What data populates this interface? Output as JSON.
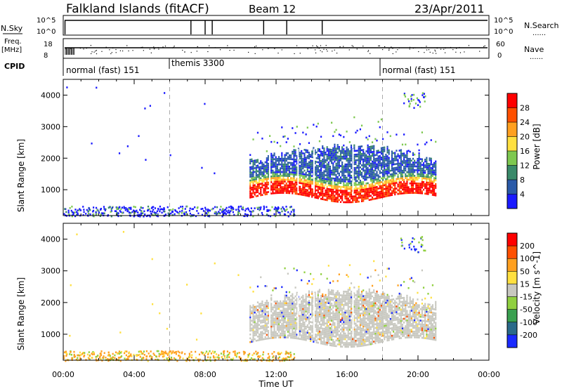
{
  "header": {
    "station": "Falkland Islands (fitACF)",
    "beam": "Beam 12",
    "date": "23/Apr/2011"
  },
  "strips": {
    "nsky_label": "N.Sky",
    "nsearch_label": "N.Search",
    "freq_label_1": "Freq.",
    "freq_label_2": "[MHz]",
    "nave_label": "Nave",
    "cpid_label": "CPID",
    "nsky_ticks": [
      "10^5",
      "10^0"
    ],
    "nsearch_ticks": [
      "10^5",
      "10^0"
    ],
    "freq_ticks": [
      "18",
      "8"
    ],
    "nave_ticks": [
      "60",
      "0"
    ],
    "dotted_legend": "......",
    "cpid_segments": [
      {
        "label": "normal (fast) 151",
        "start": 0.0,
        "end": 6.0
      },
      {
        "label": "themis 3300",
        "start": 6.0,
        "end": 18.0
      },
      {
        "label": "normal (fast) 151",
        "start": 18.0,
        "end": 24.0
      }
    ],
    "scan_breaks_hours": [
      7.2,
      8.0,
      8.4,
      11.3,
      12.6,
      14.6
    ]
  },
  "axes": {
    "ylabel": "Slant Range [km]",
    "xlabel": "Time UT",
    "yticks": [
      "1000",
      "2000",
      "3000",
      "4000"
    ],
    "xticks": [
      "00:00",
      "04:00",
      "08:00",
      "12:00",
      "16:00",
      "20:00",
      "00:00"
    ]
  },
  "chart_data": [
    {
      "type": "heatmap",
      "panel": "power",
      "xlabel": "Time UT",
      "ylabel": "Slant Range [km]",
      "xlim_hours": [
        0,
        24
      ],
      "ylim_km": [
        180,
        4500
      ],
      "colorbar_label": "Power [dB]",
      "colorbar_ticks": [
        "28",
        "24",
        "20",
        "16",
        "12",
        "8",
        "4"
      ],
      "colorbar_colors": [
        "#1a1aff",
        "#2a5aa8",
        "#3a8a6a",
        "#7ec850",
        "#ffe040",
        "#ffa020",
        "#ff5000",
        "#ff0000"
      ],
      "dashed_lines_hours": [
        6,
        18
      ],
      "echo_region": {
        "start_hour": 10.5,
        "end_hour": 21.0,
        "core_km": [
          900,
          1400
        ],
        "peak_db": 30
      }
    },
    {
      "type": "heatmap",
      "panel": "velocity",
      "xlabel": "Time UT",
      "ylabel": "Slant Range [km]",
      "xlim_hours": [
        0,
        24
      ],
      "ylim_km": [
        180,
        4500
      ],
      "colorbar_label": "Velocity [m s^-1]",
      "colorbar_ticks": [
        "200",
        "100",
        "50",
        "15",
        "-15",
        "-50",
        "-100",
        "-200"
      ],
      "colorbar_colors": [
        "#1a2aff",
        "#2a6a8a",
        "#3aa050",
        "#90d040",
        "#c8c8c0",
        "#ffe040",
        "#ffa020",
        "#ff5000",
        "#ff0000"
      ],
      "dashed_lines_hours": [
        6,
        18
      ],
      "echo_region": {
        "start_hour": 10.5,
        "end_hour": 21.0,
        "core_km": [
          900,
          2100
        ],
        "dominant_velocity": "-15 to 15 (ground scatter)"
      }
    }
  ]
}
